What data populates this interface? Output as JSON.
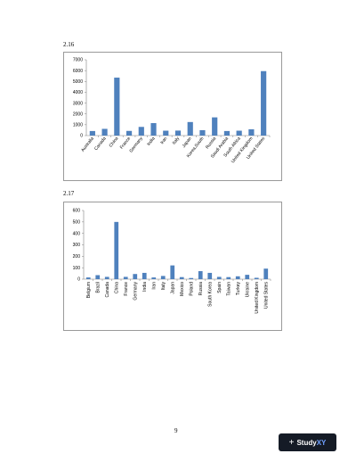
{
  "figures": [
    {
      "label": "2.16"
    },
    {
      "label": "2.17"
    }
  ],
  "page_number": "9",
  "brand": {
    "name": "Study",
    "suffix": "XY",
    "icon": "plus-icon"
  },
  "chart_data": [
    {
      "type": "bar",
      "title": "",
      "xlabel": "",
      "ylabel": "",
      "categories": [
        "Australia",
        "Canada",
        "China",
        "France",
        "Germany",
        "India",
        "Iran",
        "Italy",
        "Japan",
        "Korea,South",
        "Russia",
        "Saudi Arabia",
        "South Africa",
        "United Kingdom",
        "United States"
      ],
      "values": [
        420,
        620,
        5350,
        430,
        800,
        1150,
        450,
        460,
        1250,
        500,
        1680,
        420,
        450,
        580,
        5950
      ],
      "yticks": [
        0,
        1000,
        2000,
        3000,
        4000,
        5000,
        6000,
        7000
      ],
      "ylim": [
        0,
        7000
      ],
      "grid": false,
      "color": "#4f81bd"
    },
    {
      "type": "bar",
      "title": "",
      "xlabel": "",
      "ylabel": "",
      "categories": [
        "Belgium",
        "Brazil",
        "Canada",
        "China",
        "France",
        "Germany",
        "India",
        "Iran",
        "Italy",
        "Japan",
        "Mexico",
        "Poland",
        "Russia",
        "South Korea",
        "Spain",
        "Taiwan",
        "Turkey",
        "Ukraine",
        "United Kingdom",
        "United States"
      ],
      "values": [
        15,
        35,
        20,
        500,
        20,
        45,
        55,
        15,
        28,
        120,
        18,
        10,
        70,
        55,
        20,
        18,
        25,
        38,
        12,
        92
      ],
      "yticks": [
        0,
        100,
        200,
        300,
        400,
        500,
        600
      ],
      "ylim": [
        0,
        600
      ],
      "grid": false,
      "color": "#4f81bd"
    }
  ]
}
